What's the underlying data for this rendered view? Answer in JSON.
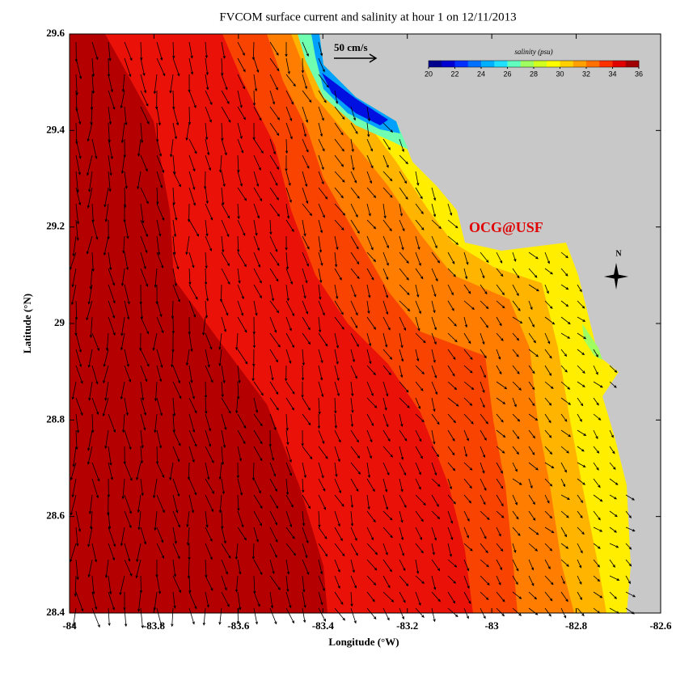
{
  "chart_data": {
    "type": "map",
    "title": "FVCOM surface current and salinity at hour 1 on 12/11/2013",
    "xlabel": "Longitude (°W)",
    "ylabel": "Latitude (°N)",
    "xlim": [
      -84,
      -82.6
    ],
    "ylim": [
      28.4,
      29.6
    ],
    "xticks": [
      -84,
      -83.8,
      -83.6,
      -83.4,
      -83.2,
      -83,
      -82.8,
      -82.6
    ],
    "yticks": [
      28.4,
      28.6,
      28.8,
      29,
      29.2,
      29.4,
      29.6
    ],
    "scale_label": "50 cm/s",
    "annotation": "OCG@USF",
    "compass_label": "N",
    "colorbar": {
      "label": "salinity (psu)",
      "lim": [
        20,
        36
      ],
      "ticks": [
        20,
        22,
        24,
        26,
        28,
        30,
        32,
        34,
        36
      ],
      "colors": [
        "#00008f",
        "#0000d0",
        "#0030ff",
        "#0070ff",
        "#00b0ff",
        "#20e0ff",
        "#60ffc0",
        "#a0ff60",
        "#d0ff20",
        "#ffff00",
        "#ffd000",
        "#ffa000",
        "#ff7000",
        "#ff3000",
        "#e00000",
        "#a00000"
      ]
    }
  }
}
